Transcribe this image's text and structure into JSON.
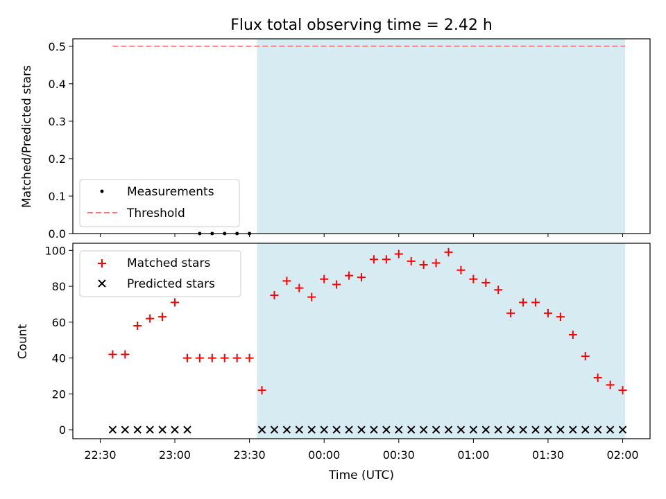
{
  "chart_data": {
    "title": "Flux total observing time = 2.42 h",
    "colors": {
      "shade": "#add8e6",
      "threshold": "#ff7f7f",
      "matched": "#ff0000",
      "predicted": "#000000",
      "measurements": "#000000"
    },
    "shaded_region": {
      "start": "23:33",
      "end": "02:01"
    },
    "top": {
      "type": "scatter",
      "ylabel": "Matched/Predicted stars",
      "ylim": [
        0,
        0.52
      ],
      "yticks": [
        "0.0",
        "0.1",
        "0.2",
        "0.3",
        "0.4",
        "0.5"
      ],
      "legend": {
        "placement": "lower-left",
        "entries": [
          "Measurements",
          "Threshold"
        ]
      },
      "threshold": {
        "y": 0.5,
        "x_start": "22:35",
        "x_end": "02:01"
      },
      "measurements": [
        {
          "x": "23:10",
          "y": 0.0
        },
        {
          "x": "23:15",
          "y": 0.0
        },
        {
          "x": "23:20",
          "y": 0.0
        },
        {
          "x": "23:25",
          "y": 0.0
        },
        {
          "x": "23:30",
          "y": 0.0
        }
      ]
    },
    "bottom": {
      "type": "scatter",
      "xlabel": "Time (UTC)",
      "ylabel": "Count",
      "ylim": [
        -5,
        104
      ],
      "yticks": [
        "0",
        "20",
        "40",
        "60",
        "80",
        "100"
      ],
      "xlim": [
        "22:19",
        "02:11"
      ],
      "xticks": [
        "22:30",
        "23:00",
        "23:30",
        "00:00",
        "00:30",
        "01:00",
        "01:30",
        "02:00"
      ],
      "legend": {
        "placement": "upper-left",
        "entries": [
          "Matched stars",
          "Predicted stars"
        ]
      },
      "series": [
        {
          "name": "Matched stars",
          "marker": "+",
          "points": [
            [
              "22:35",
              42
            ],
            [
              "22:40",
              42
            ],
            [
              "22:45",
              58
            ],
            [
              "22:50",
              62
            ],
            [
              "22:55",
              63
            ],
            [
              "23:00",
              71
            ],
            [
              "23:05",
              40
            ],
            [
              "23:10",
              40
            ],
            [
              "23:15",
              40
            ],
            [
              "23:20",
              40
            ],
            [
              "23:25",
              40
            ],
            [
              "23:30",
              40
            ],
            [
              "23:35",
              22
            ],
            [
              "23:40",
              75
            ],
            [
              "23:45",
              83
            ],
            [
              "23:50",
              79
            ],
            [
              "23:55",
              74
            ],
            [
              "00:00",
              84
            ],
            [
              "00:05",
              81
            ],
            [
              "00:10",
              86
            ],
            [
              "00:15",
              85
            ],
            [
              "00:20",
              95
            ],
            [
              "00:25",
              95
            ],
            [
              "00:30",
              98
            ],
            [
              "00:35",
              94
            ],
            [
              "00:40",
              92
            ],
            [
              "00:45",
              93
            ],
            [
              "00:50",
              99
            ],
            [
              "00:55",
              89
            ],
            [
              "01:00",
              84
            ],
            [
              "01:05",
              82
            ],
            [
              "01:10",
              78
            ],
            [
              "01:15",
              65
            ],
            [
              "01:20",
              71
            ],
            [
              "01:25",
              71
            ],
            [
              "01:30",
              65
            ],
            [
              "01:35",
              63
            ],
            [
              "01:40",
              53
            ],
            [
              "01:45",
              41
            ],
            [
              "01:50",
              29
            ],
            [
              "01:55",
              25
            ],
            [
              "02:00",
              22
            ]
          ]
        },
        {
          "name": "Predicted stars",
          "marker": "x",
          "points": [
            [
              "22:35",
              0
            ],
            [
              "22:40",
              0
            ],
            [
              "22:45",
              0
            ],
            [
              "22:50",
              0
            ],
            [
              "22:55",
              0
            ],
            [
              "23:00",
              0
            ],
            [
              "23:05",
              0
            ],
            [
              "23:35",
              0
            ],
            [
              "23:40",
              0
            ],
            [
              "23:45",
              0
            ],
            [
              "23:50",
              0
            ],
            [
              "23:55",
              0
            ],
            [
              "00:00",
              0
            ],
            [
              "00:05",
              0
            ],
            [
              "00:10",
              0
            ],
            [
              "00:15",
              0
            ],
            [
              "00:20",
              0
            ],
            [
              "00:25",
              0
            ],
            [
              "00:30",
              0
            ],
            [
              "00:35",
              0
            ],
            [
              "00:40",
              0
            ],
            [
              "00:45",
              0
            ],
            [
              "00:50",
              0
            ],
            [
              "00:55",
              0
            ],
            [
              "01:00",
              0
            ],
            [
              "01:05",
              0
            ],
            [
              "01:10",
              0
            ],
            [
              "01:15",
              0
            ],
            [
              "01:20",
              0
            ],
            [
              "01:25",
              0
            ],
            [
              "01:30",
              0
            ],
            [
              "01:35",
              0
            ],
            [
              "01:40",
              0
            ],
            [
              "01:45",
              0
            ],
            [
              "01:50",
              0
            ],
            [
              "01:55",
              0
            ],
            [
              "02:00",
              0
            ]
          ]
        }
      ]
    }
  }
}
